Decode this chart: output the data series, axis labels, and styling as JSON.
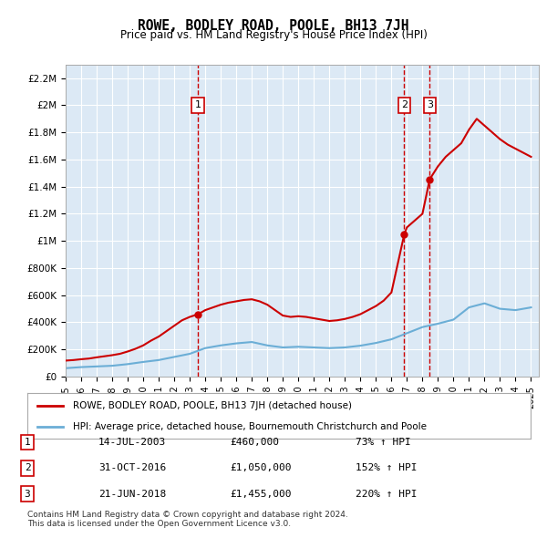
{
  "title": "ROWE, BODLEY ROAD, POOLE, BH13 7JH",
  "subtitle": "Price paid vs. HM Land Registry's House Price Index (HPI)",
  "background_color": "#dce9f5",
  "plot_bg_color": "#dce9f5",
  "ylim": [
    0,
    2300000
  ],
  "yticks": [
    0,
    200000,
    400000,
    600000,
    800000,
    1000000,
    1200000,
    1400000,
    1600000,
    1800000,
    2000000,
    2200000
  ],
  "ytick_labels": [
    "£0",
    "£200K",
    "£400K",
    "£600K",
    "£800K",
    "£1M",
    "£1.2M",
    "£1.4M",
    "£1.6M",
    "£1.8M",
    "£2M",
    "£2.2M"
  ],
  "hpi_color": "#6baed6",
  "price_color": "#cc0000",
  "sale_marker_color": "#cc0000",
  "vline_color": "#cc0000",
  "vline_style": "--",
  "legend_label_price": "ROWE, BODLEY ROAD, POOLE, BH13 7JH (detached house)",
  "legend_label_hpi": "HPI: Average price, detached house, Bournemouth Christchurch and Poole",
  "footnote": "Contains HM Land Registry data © Crown copyright and database right 2024.\nThis data is licensed under the Open Government Licence v3.0.",
  "sales": [
    {
      "num": 1,
      "date_label": "14-JUL-2003",
      "price_label": "£460,000",
      "pct_label": "73% ↑ HPI",
      "year": 2003.54
    },
    {
      "num": 2,
      "date_label": "31-OCT-2016",
      "price_label": "£1,050,000",
      "pct_label": "152% ↑ HPI",
      "year": 2016.83
    },
    {
      "num": 3,
      "date_label": "21-JUN-2018",
      "price_label": "£1,455,000",
      "pct_label": "220% ↑ HPI",
      "year": 2018.47
    }
  ],
  "sale_prices": [
    460000,
    1050000,
    1455000
  ],
  "hpi_years": [
    1995,
    1996,
    1997,
    1998,
    1999,
    2000,
    2001,
    2002,
    2003,
    2004,
    2005,
    2006,
    2007,
    2008,
    2009,
    2010,
    2011,
    2012,
    2013,
    2014,
    2015,
    2016,
    2017,
    2018,
    2019,
    2020,
    2021,
    2022,
    2023,
    2024,
    2025
  ],
  "hpi_values": [
    62000,
    70000,
    75000,
    80000,
    92000,
    108000,
    122000,
    145000,
    168000,
    210000,
    230000,
    245000,
    255000,
    230000,
    215000,
    220000,
    215000,
    210000,
    215000,
    228000,
    248000,
    275000,
    320000,
    365000,
    390000,
    420000,
    510000,
    540000,
    500000,
    490000,
    510000
  ],
  "price_years": [
    1995.0,
    1995.5,
    1996.0,
    1996.5,
    1997.0,
    1997.5,
    1998.0,
    1998.5,
    1999.0,
    1999.5,
    2000.0,
    2000.5,
    2001.0,
    2001.5,
    2002.0,
    2002.5,
    2003.0,
    2003.54,
    2004.0,
    2004.5,
    2005.0,
    2005.5,
    2006.0,
    2006.5,
    2007.0,
    2007.5,
    2008.0,
    2008.5,
    2009.0,
    2009.5,
    2010.0,
    2010.5,
    2011.0,
    2011.5,
    2012.0,
    2012.5,
    2013.0,
    2013.5,
    2014.0,
    2014.5,
    2015.0,
    2015.5,
    2016.0,
    2016.83,
    2017.0,
    2017.5,
    2018.0,
    2018.47,
    2019.0,
    2019.5,
    2020.0,
    2020.5,
    2021.0,
    2021.5,
    2022.0,
    2022.5,
    2023.0,
    2023.5,
    2024.0,
    2024.5,
    2025.0
  ],
  "price_values": [
    118000,
    122000,
    128000,
    133000,
    142000,
    150000,
    158000,
    168000,
    185000,
    205000,
    230000,
    265000,
    295000,
    335000,
    375000,
    415000,
    440000,
    460000,
    490000,
    510000,
    530000,
    545000,
    555000,
    565000,
    570000,
    555000,
    530000,
    490000,
    450000,
    440000,
    445000,
    440000,
    430000,
    420000,
    410000,
    415000,
    425000,
    440000,
    460000,
    490000,
    520000,
    560000,
    620000,
    1050000,
    1100000,
    1150000,
    1200000,
    1455000,
    1550000,
    1620000,
    1670000,
    1720000,
    1820000,
    1900000,
    1850000,
    1800000,
    1750000,
    1710000,
    1680000,
    1650000,
    1620000
  ],
  "xlim": [
    1995,
    2025.5
  ],
  "xtick_years": [
    1995,
    1996,
    1997,
    1998,
    1999,
    2000,
    2001,
    2002,
    2003,
    2004,
    2005,
    2006,
    2007,
    2008,
    2009,
    2010,
    2011,
    2012,
    2013,
    2014,
    2015,
    2016,
    2017,
    2018,
    2019,
    2020,
    2021,
    2022,
    2023,
    2024,
    2025
  ]
}
